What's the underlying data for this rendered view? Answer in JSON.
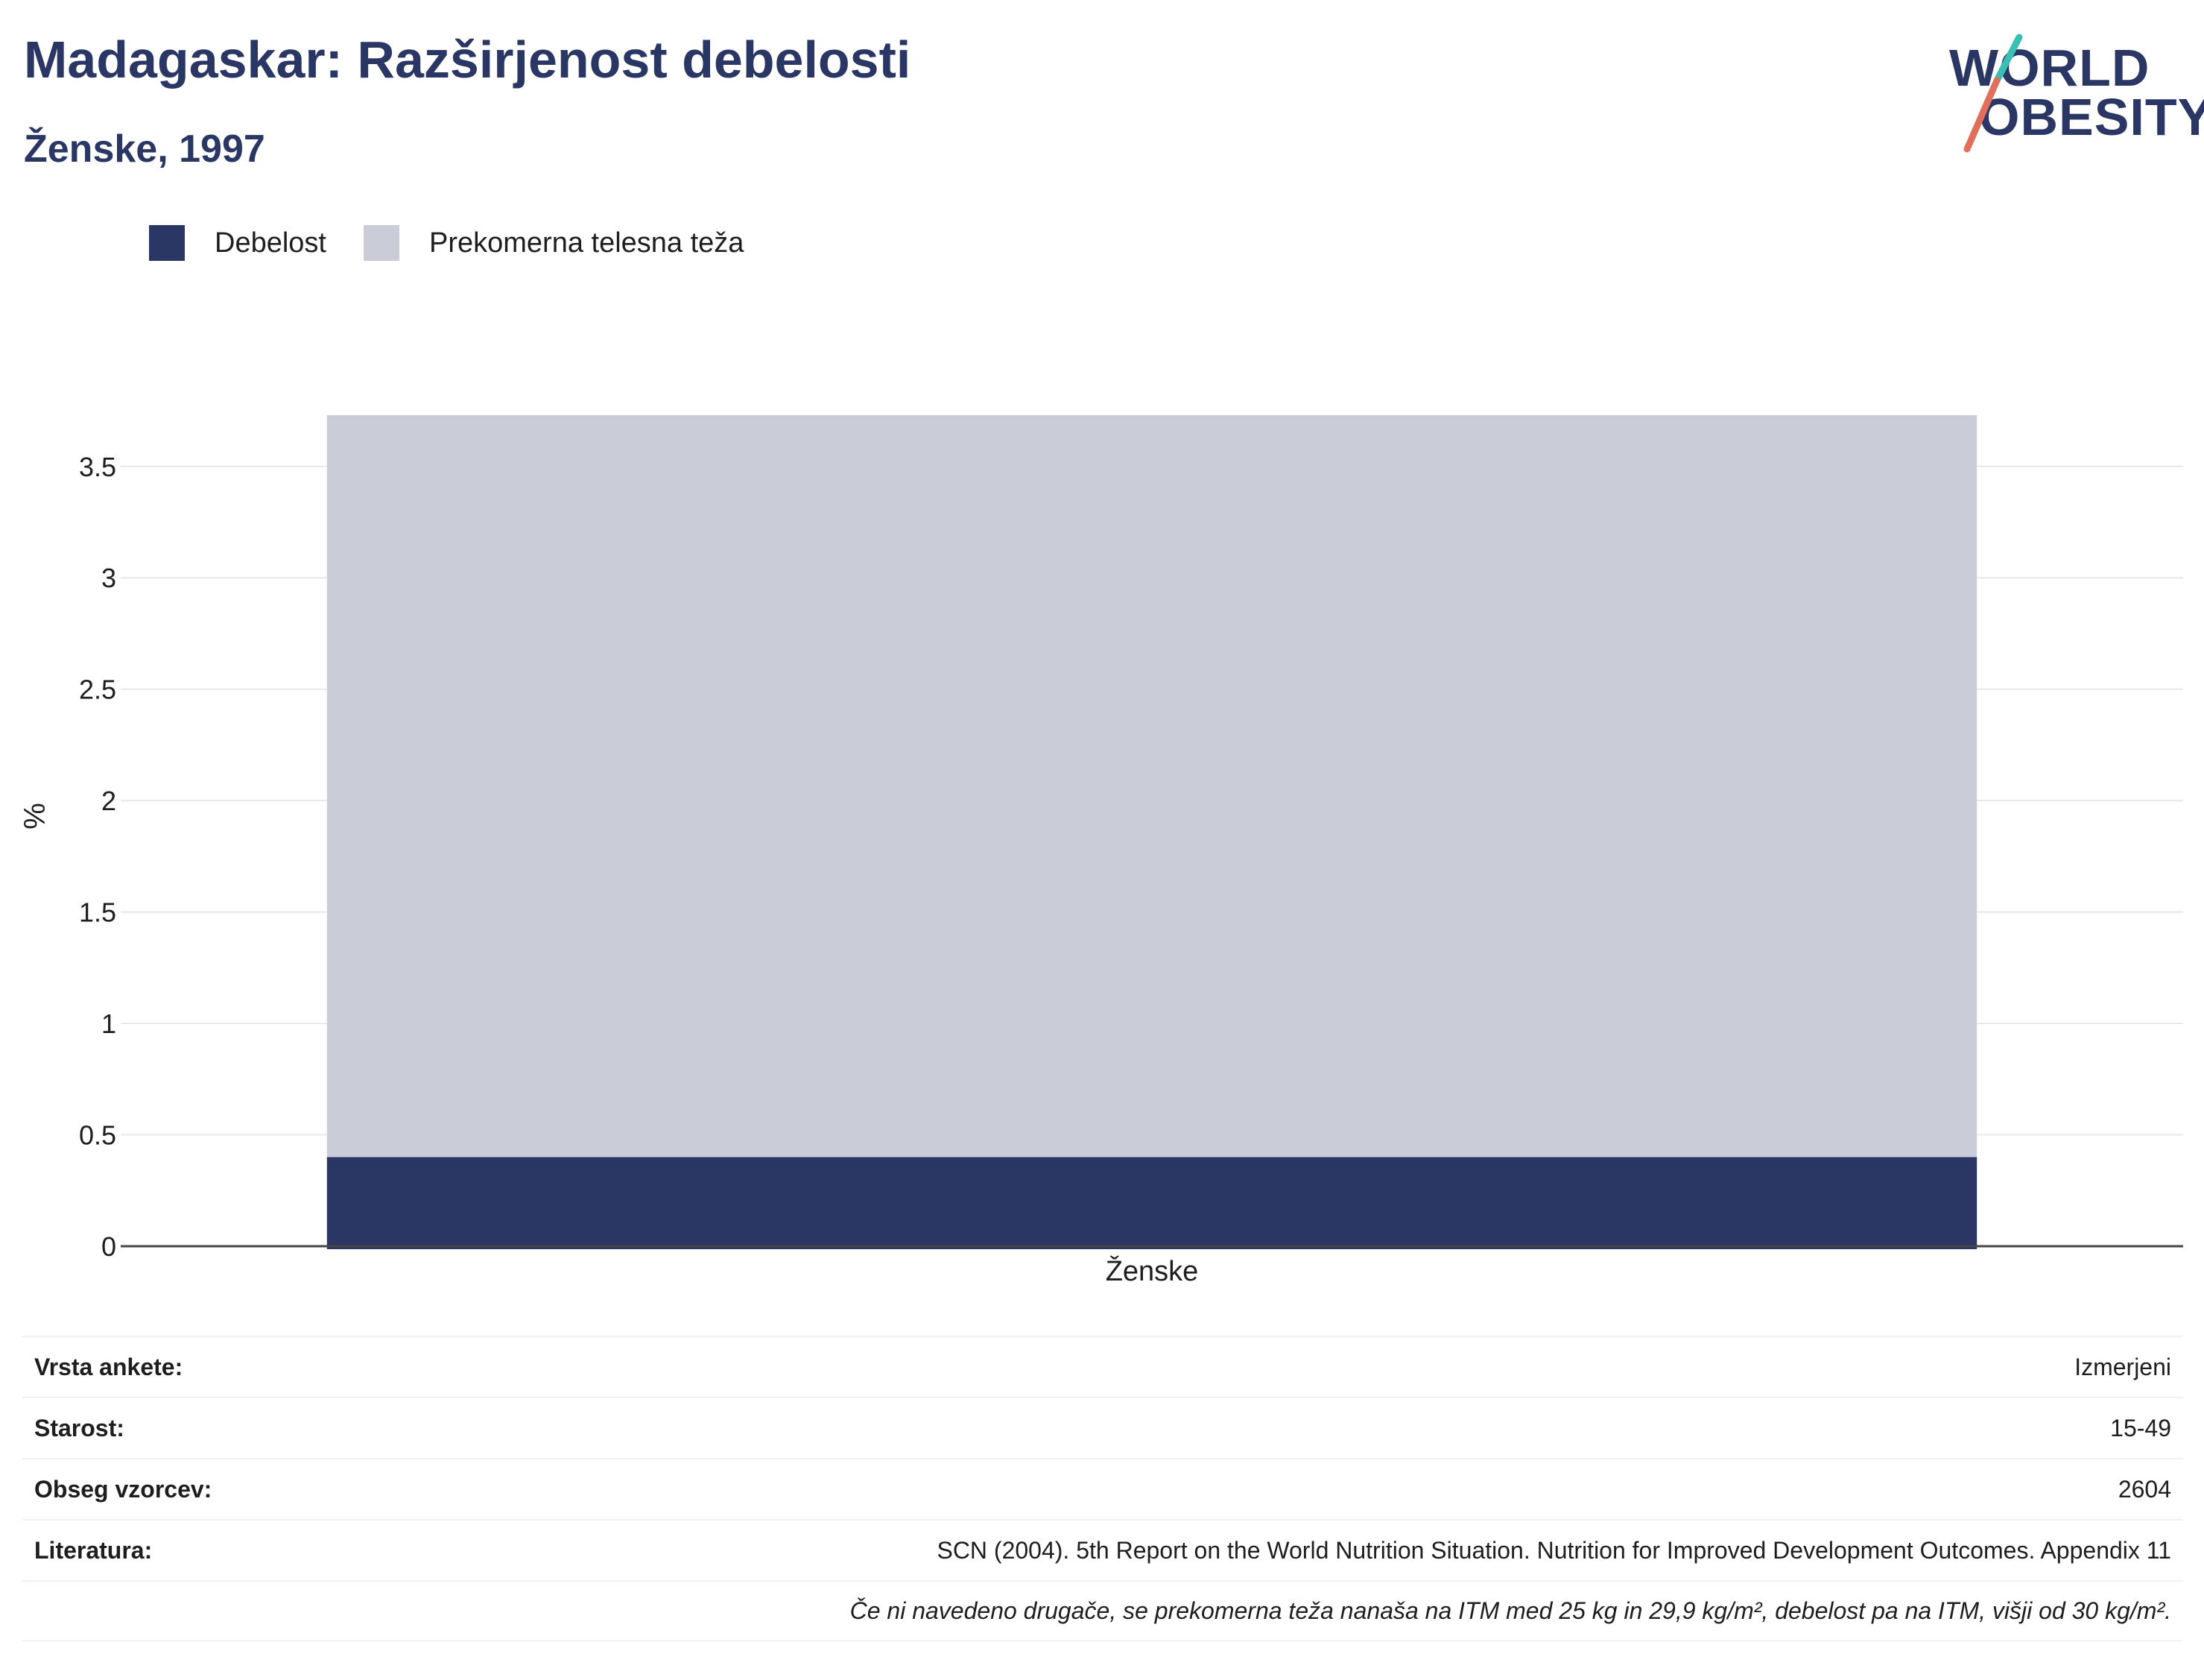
{
  "header": {
    "title": "Madagaskar: Razširjenost debelosti",
    "subtitle": "Ženske, 1997"
  },
  "logo": {
    "line1": "WORLD",
    "line2": "OBESITY"
  },
  "colors": {
    "obesity": "#2a3663",
    "overweight": "#cacdd8",
    "title": "#2a3663",
    "logo_teal": "#3bbfb4",
    "logo_coral": "#e0705c"
  },
  "chart_data": {
    "type": "bar",
    "stacked": true,
    "categories": [
      "Ženske"
    ],
    "series": [
      {
        "name": "Debelost",
        "values": [
          0.4
        ]
      },
      {
        "name": "Prekomerna telesna teža",
        "values": [
          3.33
        ]
      }
    ],
    "ylabel": "%",
    "xlabel": "",
    "ylim": [
      0,
      3.72
    ],
    "yticks": [
      0,
      0.5,
      1,
      1.5,
      2,
      2.5,
      3,
      3.5
    ],
    "ytick_labels": [
      "0",
      "0.5",
      "1",
      "1.5",
      "2",
      "2.5",
      "3",
      "3.5"
    ],
    "grid": true,
    "legend": "top-left"
  },
  "info": {
    "rows": [
      {
        "key": "Vrsta ankete:",
        "value": "Izmerjeni"
      },
      {
        "key": "Starost:",
        "value": "15-49"
      },
      {
        "key": "Obseg vzorcev:",
        "value": "2604"
      },
      {
        "key": "Literatura:",
        "value": "SCN (2004). 5th Report on the World Nutrition Situation. Nutrition for Improved Development Outcomes. Appendix 11"
      }
    ],
    "note": "Če ni navedeno drugače, se prekomerna teža nanaša na ITM med 25 kg in 29,9 kg/m², debelost pa na ITM, višji od 30 kg/m²."
  }
}
